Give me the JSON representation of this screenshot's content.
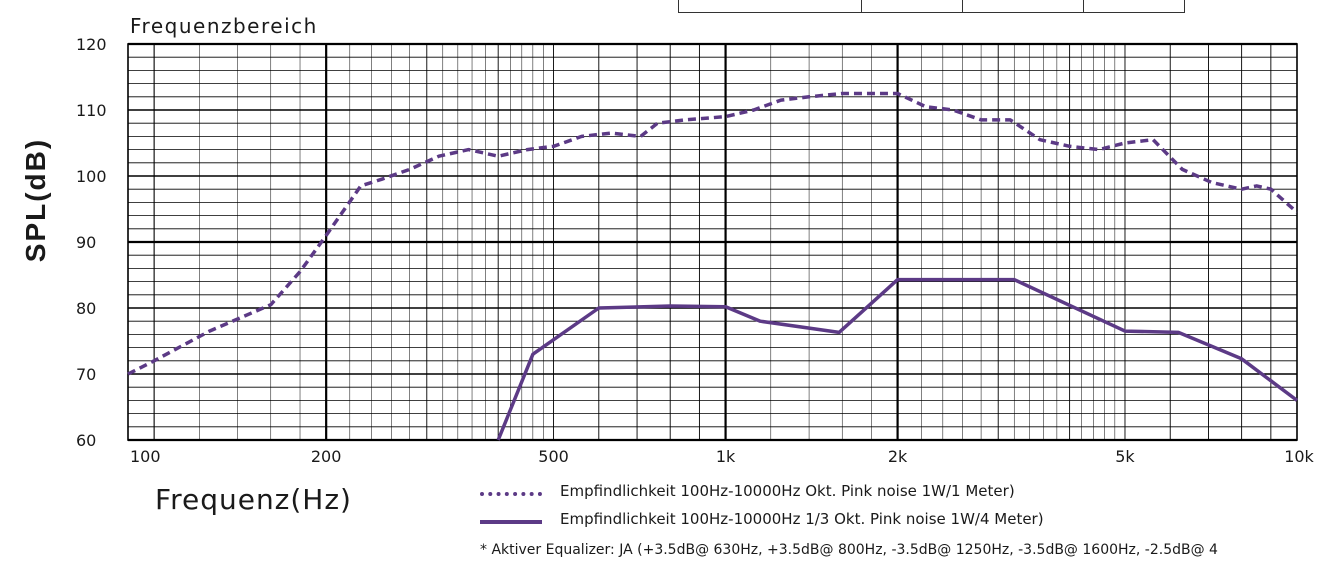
{
  "chart_data": {
    "type": "line",
    "title": "Frequenzbereich",
    "xlabel": "Frequenz(Hz)",
    "ylabel": "SPL(dB)",
    "xscale": "log",
    "xlim": [
      90,
      10000
    ],
    "ylim": [
      60,
      120
    ],
    "yticks": [
      60,
      70,
      80,
      90,
      100,
      110,
      120
    ],
    "xticks": [
      100,
      200,
      500,
      1000,
      2000,
      5000,
      10000
    ],
    "xtick_labels": [
      "100",
      "200",
      "500",
      "1k",
      "2k",
      "5k",
      "10k"
    ],
    "grid": true,
    "colors": {
      "series": "#5c3a86",
      "grid": "#000000"
    },
    "series": [
      {
        "name": "Empfindlichkeit 100Hz-10000Hz Okt. Pink noise 1W/1 Meter)",
        "style": "dashed",
        "x": [
          90,
          100,
          125,
          160,
          180,
          200,
          230,
          250,
          280,
          315,
          355,
          400,
          450,
          500,
          560,
          630,
          710,
          760,
          850,
          1000,
          1120,
          1250,
          1400,
          1600,
          1800,
          2000,
          2240,
          2500,
          2800,
          3150,
          3550,
          4000,
          4500,
          5000,
          5600,
          6300,
          7100,
          8000,
          8500,
          9000,
          10000
        ],
        "y": [
          70,
          72,
          76.5,
          80.5,
          85.5,
          91,
          98.5,
          99.5,
          101,
          103,
          104,
          103,
          104,
          104.5,
          106,
          106.5,
          106,
          108,
          108.5,
          109,
          110,
          111.5,
          112,
          112.5,
          112.5,
          112.5,
          110.5,
          110,
          108.5,
          108.5,
          105.5,
          104.5,
          104,
          105,
          105.5,
          101,
          99,
          98,
          98.5,
          98,
          94.5
        ]
      },
      {
        "name": "Empfindlichkeit 100Hz-10000Hz 1/3 Okt. Pink noise 1W/4 Meter)",
        "style": "solid",
        "x": [
          400,
          460,
          600,
          800,
          1000,
          1150,
          1580,
          2000,
          2500,
          3200,
          5000,
          6200,
          8000,
          10000
        ],
        "y": [
          60,
          73,
          80,
          80.3,
          80.2,
          78,
          76.3,
          84.3,
          84.3,
          84.3,
          76.5,
          76.3,
          72.3,
          66
        ]
      }
    ]
  },
  "legend": {
    "items": [
      {
        "label": "Empfindlichkeit 100Hz-10000Hz Okt. Pink noise 1W/1 Meter)"
      },
      {
        "label": "Empfindlichkeit 100Hz-10000Hz 1/3 Okt. Pink noise 1W/4 Meter)"
      }
    ]
  },
  "footnote": "* Aktiver Equalizer: JA (+3.5dB@ 630Hz, +3.5dB@ 800Hz, -3.5dB@ 1250Hz, -3.5dB@ 1600Hz, -2.5dB@ 4"
}
